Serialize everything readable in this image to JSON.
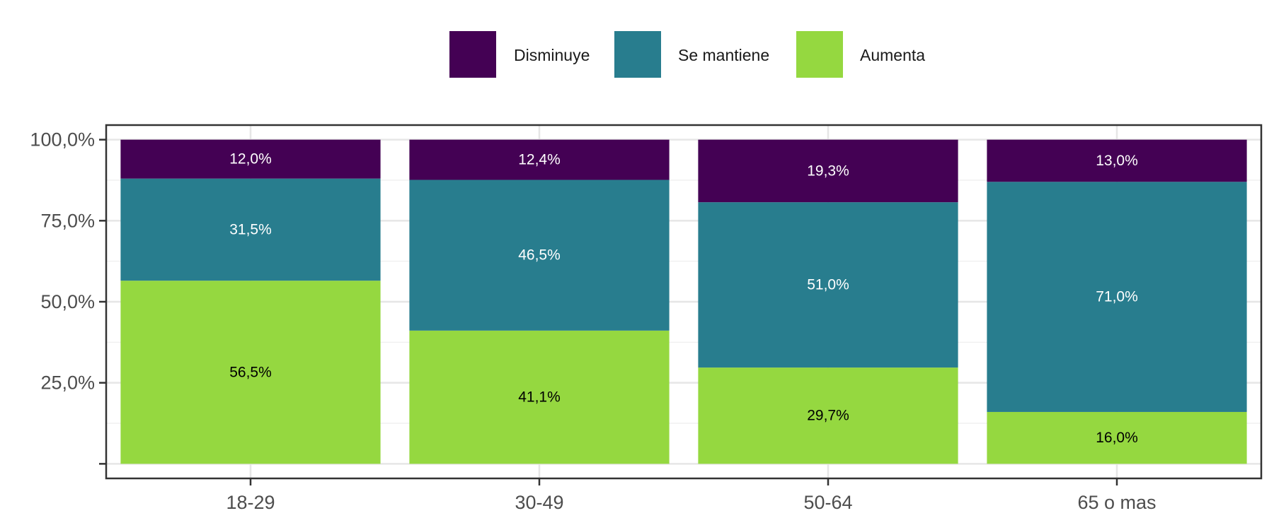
{
  "chart_data": {
    "type": "bar",
    "stacked": true,
    "orientation": "vertical",
    "categories": [
      "18-29",
      "30-49",
      "50-64",
      "65 o mas"
    ],
    "series": [
      {
        "name": "Aumenta",
        "color": "#95d840",
        "label_color": "#000000",
        "values": [
          56.5,
          41.1,
          29.7,
          16.0
        ],
        "labels": [
          "56,5%",
          "41,1%",
          "29,7%",
          "16,0%"
        ]
      },
      {
        "name": "Se mantiene",
        "color": "#287d8e",
        "label_color": "#ffffff",
        "values": [
          31.5,
          46.5,
          51.0,
          71.0
        ],
        "labels": [
          "31,5%",
          "46,5%",
          "51,0%",
          "71,0%"
        ]
      },
      {
        "name": "Disminuye",
        "color": "#440154",
        "label_color": "#ffffff",
        "values": [
          12.0,
          12.4,
          19.3,
          13.0
        ],
        "labels": [
          "12,0%",
          "12,4%",
          "19,3%",
          "13,0%"
        ]
      }
    ],
    "legend_order": [
      "Disminuye",
      "Se mantiene",
      "Aumenta"
    ],
    "legend_position": "top",
    "y_ticks": [
      {
        "value": 0,
        "label": ""
      },
      {
        "value": 25,
        "label": "25,0%"
      },
      {
        "value": 50,
        "label": "50,0%"
      },
      {
        "value": 75,
        "label": "75,0%"
      },
      {
        "value": 100,
        "label": "100,0%"
      }
    ],
    "ylim": [
      -4.5,
      104.5
    ],
    "grid": true,
    "title": "",
    "xlabel": "",
    "ylabel": ""
  }
}
